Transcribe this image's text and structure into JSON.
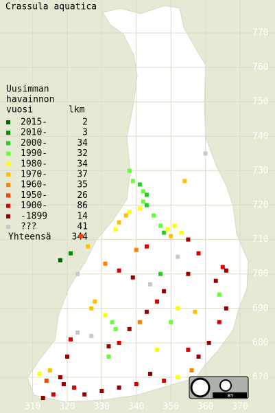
{
  "title": "Crassula aquatica",
  "legend": {
    "heading": [
      "Uusimman",
      "havainnon",
      "vuosi"
    ],
    "count_heading": "lkm",
    "rows": [
      {
        "label": "2015-",
        "count": 2,
        "color": "#006400"
      },
      {
        "label": "2010-",
        "count": 3,
        "color": "#009000"
      },
      {
        "label": "2000-",
        "count": 34,
        "color": "#22cc22"
      },
      {
        "label": "1990-",
        "count": 32,
        "color": "#66ff33"
      },
      {
        "label": "1980-",
        "count": 34,
        "color": "#ffff00"
      },
      {
        "label": "1970-",
        "count": 37,
        "color": "#ffc000"
      },
      {
        "label": "1960-",
        "count": 35,
        "color": "#ff8000"
      },
      {
        "label": "1950-",
        "count": 26,
        "color": "#ff4000"
      },
      {
        "label": "1900-",
        "count": 86,
        "color": "#dd0000"
      },
      {
        "label": "-1899",
        "count": 14,
        "color": "#990000"
      },
      {
        "label": "???",
        "count": 41,
        "color": "#c8c8c8"
      }
    ],
    "total_label": "Yhteensä",
    "total": 344
  },
  "xticks": [
    310,
    320,
    330,
    340,
    350,
    360,
    370
  ],
  "yticks": [
    770,
    760,
    750,
    740,
    730,
    720,
    710,
    700,
    690,
    680,
    670
  ],
  "license_badge": "BY",
  "points": [
    [
      338,
      730,
      3
    ],
    [
      339,
      727,
      3
    ],
    [
      341,
      726,
      2
    ],
    [
      342,
      724,
      3
    ],
    [
      343,
      723,
      2
    ],
    [
      342,
      721,
      3
    ],
    [
      343,
      720,
      2
    ],
    [
      341,
      719,
      4
    ],
    [
      338,
      718,
      4
    ],
    [
      337,
      717,
      5
    ],
    [
      335,
      715,
      5
    ],
    [
      334,
      713,
      4
    ],
    [
      345,
      717,
      3
    ],
    [
      347,
      714,
      3
    ],
    [
      348,
      712,
      2
    ],
    [
      349,
      713,
      4
    ],
    [
      350,
      711,
      5
    ],
    [
      351,
      714,
      4
    ],
    [
      353,
      712,
      4
    ],
    [
      355,
      710,
      9
    ],
    [
      360,
      735,
      10
    ],
    [
      354,
      727,
      5
    ],
    [
      358,
      706,
      8
    ],
    [
      365,
      702,
      8
    ],
    [
      366,
      701,
      9
    ],
    [
      363,
      698,
      9
    ],
    [
      364,
      694,
      3
    ],
    [
      366,
      690,
      9
    ],
    [
      364,
      686,
      8
    ],
    [
      361,
      680,
      9
    ],
    [
      358,
      676,
      9
    ],
    [
      356,
      672,
      6
    ],
    [
      352,
      670,
      4
    ],
    [
      348,
      669,
      8
    ],
    [
      344,
      671,
      9
    ],
    [
      340,
      668,
      8
    ],
    [
      335,
      667,
      9
    ],
    [
      330,
      666,
      9
    ],
    [
      325,
      665,
      9
    ],
    [
      322,
      667,
      8
    ],
    [
      319,
      668,
      9
    ],
    [
      318,
      670,
      9
    ],
    [
      315,
      672,
      5
    ],
    [
      314,
      669,
      7
    ],
    [
      312,
      671,
      4
    ],
    [
      320,
      676,
      9
    ],
    [
      321,
      681,
      8
    ],
    [
      323,
      683,
      10
    ],
    [
      327,
      690,
      5
    ],
    [
      328,
      692,
      5
    ],
    [
      331,
      688,
      4
    ],
    [
      333,
      686,
      3
    ],
    [
      334,
      684,
      3
    ],
    [
      335,
      680,
      8
    ],
    [
      332,
      679,
      9
    ],
    [
      338,
      684,
      9
    ],
    [
      341,
      686,
      6
    ],
    [
      343,
      689,
      9
    ],
    [
      346,
      692,
      8
    ],
    [
      348,
      695,
      9
    ],
    [
      344,
      697,
      10
    ],
    [
      339,
      699,
      9
    ],
    [
      335,
      701,
      8
    ],
    [
      331,
      703,
      6
    ],
    [
      326,
      708,
      5
    ],
    [
      324,
      711,
      7
    ],
    [
      318,
      704,
      0
    ],
    [
      321,
      706,
      1
    ],
    [
      323,
      700,
      10
    ],
    [
      340,
      707,
      6
    ],
    [
      343,
      708,
      8
    ],
    [
      352,
      705,
      10
    ],
    [
      355,
      700,
      9
    ],
    [
      350,
      686,
      3
    ],
    [
      355,
      678,
      8
    ],
    [
      346,
      678,
      4
    ],
    [
      332,
      676,
      3
    ],
    [
      327,
      682,
      10
    ],
    [
      313,
      664,
      9
    ],
    [
      316,
      665,
      8
    ],
    [
      352,
      690,
      4
    ],
    [
      357,
      689,
      5
    ],
    [
      347,
      700,
      2
    ]
  ]
}
